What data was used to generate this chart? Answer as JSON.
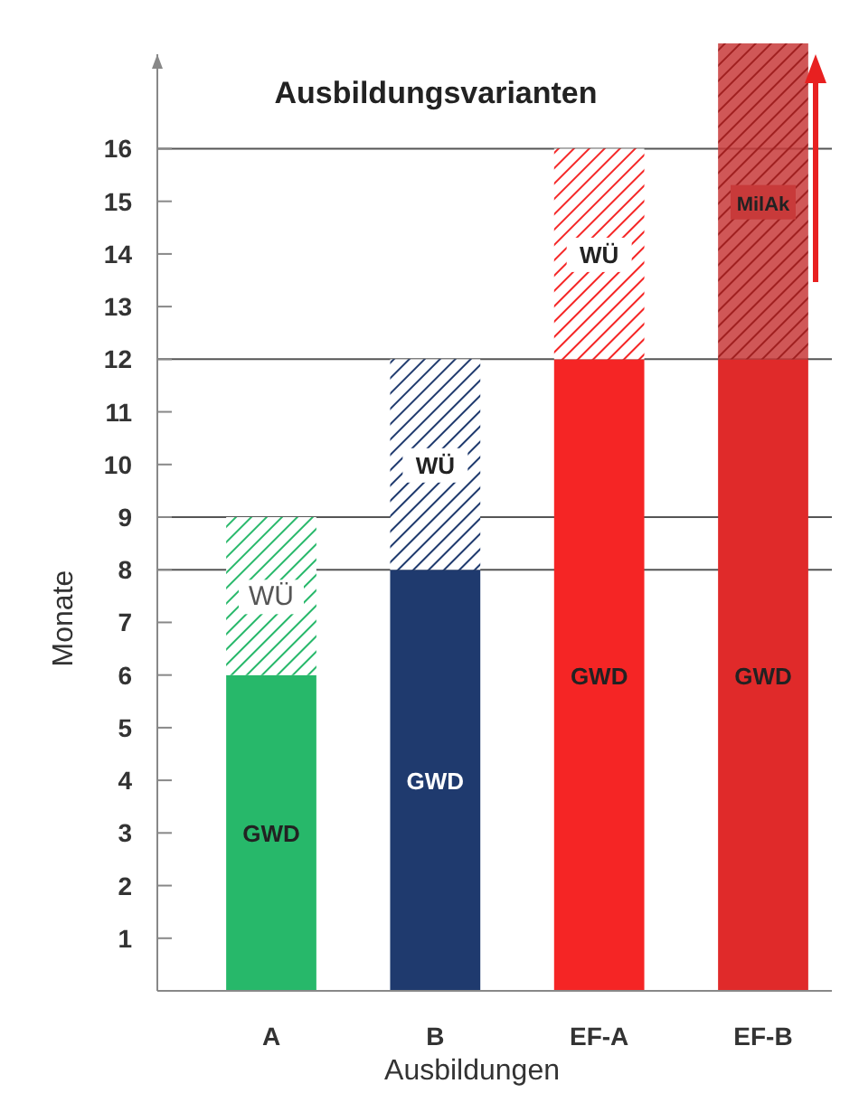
{
  "chart_data": {
    "type": "bar",
    "title": "Ausbildungsvarianten",
    "xlabel": "Ausbildungen",
    "ylabel": "Monate",
    "categories": [
      "A",
      "B",
      "EF-A",
      "EF-B"
    ],
    "stacked": true,
    "series": [
      {
        "name": "GWD",
        "colors": [
          "#27b86a",
          "#1f3a6e",
          "#f52525",
          "#e02a2a"
        ],
        "values": [
          6,
          8,
          12,
          12
        ]
      },
      {
        "name": "WÜ",
        "colors": [
          "#27b86a",
          "#1f3a6e",
          "#f52525",
          null
        ],
        "values": [
          3,
          4,
          4,
          null
        ]
      },
      {
        "name": "MilAk",
        "colors": [
          null,
          null,
          null,
          "#c83a3a"
        ],
        "values": [
          null,
          null,
          null,
          6
        ]
      }
    ],
    "ylim": [
      0,
      18
    ],
    "yticks": [
      1,
      2,
      3,
      4,
      5,
      6,
      7,
      8,
      9,
      10,
      11,
      12,
      13,
      14,
      15,
      16
    ],
    "ref_lines": [
      {
        "axis": "y",
        "value": 9
      },
      {
        "axis": "y",
        "value": 8
      },
      {
        "axis": "y",
        "value": 12
      },
      {
        "axis": "y",
        "value": 16
      }
    ]
  }
}
